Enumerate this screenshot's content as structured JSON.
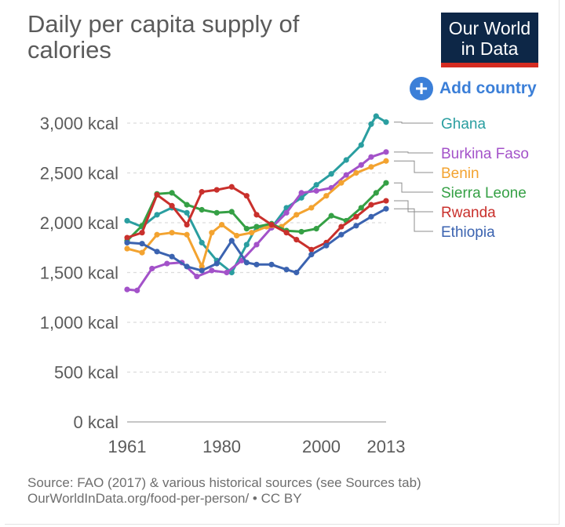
{
  "title": "Daily per capita supply of calories",
  "logo": {
    "line1": "Our World",
    "line2": "in Data"
  },
  "add_country": {
    "label": "Add country",
    "icon": "plus-circle-icon"
  },
  "source": {
    "line1": "Source: FAO (2017) & various historical sources (see Sources tab)",
    "line2": "OurWorldInData.org/food-per-person/ • CC BY"
  },
  "chart_data": {
    "type": "line",
    "title": "Daily per capita supply of calories",
    "xlim": [
      1961,
      2013
    ],
    "ylim": [
      0,
      3000
    ],
    "grid": true,
    "x_ticks": [
      1961,
      1980,
      2000,
      2013
    ],
    "y_ticks": [
      {
        "value": 0,
        "label": "0 kcal"
      },
      {
        "value": 500,
        "label": "500 kcal"
      },
      {
        "value": 1000,
        "label": "1,000 kcal"
      },
      {
        "value": 1500,
        "label": "1,500 kcal"
      },
      {
        "value": 2000,
        "label": "2,000 kcal"
      },
      {
        "value": 2500,
        "label": "2,500 kcal"
      },
      {
        "value": 3000,
        "label": "3,000 kcal"
      }
    ],
    "legend_position": "right",
    "series": [
      {
        "name": "Ghana",
        "color": "#2a9ea0",
        "x": [
          1961,
          1964,
          1967,
          1970,
          1973,
          1976,
          1979,
          1982,
          1985,
          1987,
          1990,
          1993,
          1996,
          1999,
          2002,
          2005,
          2008,
          2010,
          2011,
          2013
        ],
        "values": [
          2020,
          1960,
          2080,
          2150,
          2100,
          1800,
          1620,
          1500,
          1780,
          1960,
          1950,
          2150,
          2250,
          2380,
          2490,
          2630,
          2780,
          2990,
          3070,
          3010
        ]
      },
      {
        "name": "Burkina Faso",
        "color": "#a352c9",
        "x": [
          1961,
          1963,
          1966,
          1969,
          1972,
          1975,
          1978,
          1981,
          1984,
          1987,
          1990,
          1993,
          1996,
          1999,
          2002,
          2005,
          2008,
          2010,
          2013
        ],
        "values": [
          1330,
          1320,
          1540,
          1590,
          1600,
          1460,
          1520,
          1500,
          1620,
          1780,
          1950,
          2100,
          2300,
          2320,
          2350,
          2480,
          2580,
          2660,
          2710
        ]
      },
      {
        "name": "Benin",
        "color": "#f3a330",
        "x": [
          1961,
          1964,
          1967,
          1970,
          1973,
          1976,
          1978,
          1980,
          1983,
          1986,
          1989,
          1992,
          1995,
          1998,
          2001,
          2004,
          2007,
          2010,
          2013
        ],
        "values": [
          1740,
          1700,
          1880,
          1900,
          1880,
          1560,
          1900,
          1980,
          1870,
          1900,
          1960,
          1960,
          2080,
          2150,
          2270,
          2400,
          2500,
          2560,
          2620
        ]
      },
      {
        "name": "Sierra Leone",
        "color": "#35a045",
        "x": [
          1961,
          1964,
          1967,
          1970,
          1973,
          1976,
          1979,
          1982,
          1985,
          1987,
          1990,
          1993,
          1996,
          1999,
          2002,
          2005,
          2008,
          2011,
          2013
        ],
        "values": [
          1820,
          1970,
          2290,
          2300,
          2180,
          2130,
          2100,
          2110,
          1940,
          1960,
          1990,
          1920,
          1910,
          1940,
          2070,
          2020,
          2150,
          2300,
          2400
        ]
      },
      {
        "name": "Rwanda",
        "color": "#c9302c",
        "x": [
          1961,
          1964,
          1967,
          1970,
          1973,
          1976,
          1979,
          1982,
          1985,
          1987,
          1990,
          1993,
          1995,
          1998,
          2001,
          2004,
          2007,
          2010,
          2013
        ],
        "values": [
          1850,
          1900,
          2280,
          2170,
          1980,
          2310,
          2330,
          2360,
          2270,
          2080,
          1980,
          1900,
          1830,
          1730,
          1800,
          1960,
          2060,
          2180,
          2220
        ]
      },
      {
        "name": "Ethiopia",
        "color": "#3b63b0",
        "x": [
          1961,
          1964,
          1967,
          1970,
          1973,
          1976,
          1979,
          1982,
          1985,
          1987,
          1990,
          1993,
          1995,
          1998,
          2001,
          2004,
          2007,
          2010,
          2013
        ],
        "values": [
          1800,
          1790,
          1710,
          1660,
          1560,
          1520,
          1590,
          1820,
          1600,
          1580,
          1580,
          1530,
          1500,
          1680,
          1770,
          1880,
          1970,
          2060,
          2140
        ]
      }
    ]
  }
}
